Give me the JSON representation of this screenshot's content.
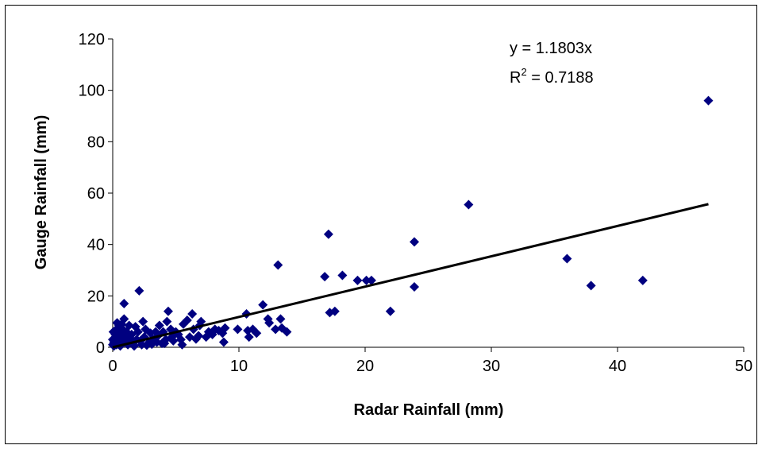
{
  "chart_data": {
    "type": "scatter",
    "xlabel": "Radar Rainfall (mm)",
    "ylabel": "Gauge Rainfall (mm)",
    "xlim": [
      0,
      50
    ],
    "ylim": [
      0,
      120
    ],
    "x_ticks": [
      0,
      10,
      20,
      30,
      40,
      50
    ],
    "y_ticks": [
      0,
      20,
      40,
      60,
      80,
      100,
      120
    ],
    "grid": false,
    "legend": "none",
    "marker": "diamond",
    "marker_color": "#000080",
    "trendline": {
      "slope": 1.1803,
      "intercept": 0,
      "x_range": [
        0,
        47.2
      ],
      "color": "#000000"
    },
    "annotations": {
      "equation": "y = 1.1803x",
      "r2_prefix": "R",
      "r2_exp": "2",
      "r2_value": " = 0.7188"
    },
    "points": [
      [
        47.2,
        96
      ],
      [
        28.2,
        55.5
      ],
      [
        17.1,
        44
      ],
      [
        23.9,
        41
      ],
      [
        36,
        34.5
      ],
      [
        13.1,
        32
      ],
      [
        42,
        26
      ],
      [
        37.9,
        24
      ],
      [
        23.9,
        23.5
      ],
      [
        16.8,
        27.5
      ],
      [
        18.2,
        28
      ],
      [
        19.4,
        26
      ],
      [
        20.1,
        26
      ],
      [
        20.5,
        26
      ],
      [
        17.2,
        13.5
      ],
      [
        17.6,
        14
      ],
      [
        22,
        14
      ],
      [
        13.3,
        11
      ],
      [
        13.8,
        6
      ],
      [
        13.4,
        7.5
      ],
      [
        12.9,
        7
      ],
      [
        12.3,
        11
      ],
      [
        12.4,
        9.5
      ],
      [
        11.9,
        16.5
      ],
      [
        11.4,
        5.5
      ],
      [
        11.1,
        7
      ],
      [
        10.7,
        6.5
      ],
      [
        10.6,
        13
      ],
      [
        10.8,
        4
      ],
      [
        9.9,
        7
      ],
      [
        8.8,
        2
      ],
      [
        8.7,
        5.5
      ],
      [
        8.4,
        6.5
      ],
      [
        8.1,
        7
      ],
      [
        7.6,
        6
      ],
      [
        7.4,
        4
      ],
      [
        7,
        10
      ],
      [
        6.8,
        4.5
      ],
      [
        6.4,
        7
      ],
      [
        6.3,
        13
      ],
      [
        6.1,
        4
      ],
      [
        5.9,
        10.5
      ],
      [
        5.6,
        9
      ],
      [
        5.4,
        3
      ],
      [
        5.2,
        5
      ],
      [
        5,
        6
      ],
      [
        4.8,
        2.5
      ],
      [
        4.6,
        7
      ],
      [
        4.4,
        14
      ],
      [
        4.3,
        10
      ],
      [
        4.2,
        3
      ],
      [
        4,
        6
      ],
      [
        3.9,
        1.5
      ],
      [
        3.7,
        8.5
      ],
      [
        3.6,
        4.5
      ],
      [
        3.4,
        6
      ],
      [
        3.2,
        3
      ],
      [
        3,
        5.5
      ],
      [
        2.9,
        2
      ],
      [
        2.6,
        7
      ],
      [
        2.5,
        4
      ],
      [
        2.4,
        10
      ],
      [
        2.3,
        1
      ],
      [
        2.1,
        22
      ],
      [
        2,
        6
      ],
      [
        1.9,
        3
      ],
      [
        1.8,
        8
      ],
      [
        1.6,
        1.5
      ],
      [
        1.5,
        5
      ],
      [
        1.4,
        3.5
      ],
      [
        1.3,
        8.5
      ],
      [
        1.2,
        1
      ],
      [
        1.1,
        6
      ],
      [
        1,
        3
      ],
      [
        0.9,
        17
      ],
      [
        0.9,
        11
      ],
      [
        0.8,
        7
      ],
      [
        0.8,
        1.5
      ],
      [
        0.7,
        5
      ],
      [
        0.7,
        9
      ],
      [
        0.6,
        3
      ],
      [
        0.6,
        0.5
      ],
      [
        0.5,
        6
      ],
      [
        0.5,
        8.5
      ],
      [
        0.4,
        2
      ],
      [
        0.4,
        4.5
      ],
      [
        0.3,
        1
      ],
      [
        0.3,
        7
      ],
      [
        0.2,
        3
      ],
      [
        0.2,
        5
      ],
      [
        0.1,
        0.5
      ],
      [
        0.1,
        2
      ],
      [
        0,
        1
      ],
      [
        0,
        3
      ],
      [
        0.05,
        6
      ],
      [
        1.7,
        0.5
      ],
      [
        2.7,
        0.8
      ],
      [
        3.5,
        2
      ],
      [
        4.1,
        1.5
      ],
      [
        5.5,
        1
      ],
      [
        1.2,
        4
      ],
      [
        0.35,
        9.5
      ],
      [
        0.95,
        2.2
      ],
      [
        2.2,
        2.5
      ],
      [
        3.1,
        1.2
      ],
      [
        6.6,
        3.2
      ],
      [
        7.9,
        5
      ],
      [
        8.9,
        7.5
      ],
      [
        6.9,
        8.5
      ],
      [
        4.7,
        4
      ]
    ]
  }
}
